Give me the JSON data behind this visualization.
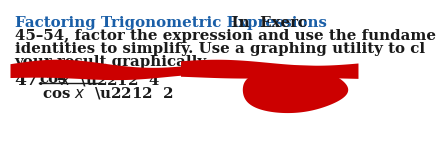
{
  "title_blue": "Factoring Trigonometric Expressions",
  "title_black_part": "  In  Exerc",
  "line2": "45–54, factor the expression and use the fundame",
  "line3": "identities to simplify. Use a graphing utility to cl",
  "line4": "your result graphically.",
  "number": "47.",
  "blue_color": "#1a5fa8",
  "black_color": "#1a1a1a",
  "red_color": "#cc0000",
  "bg_color": "#ffffff",
  "fs": 10.8
}
